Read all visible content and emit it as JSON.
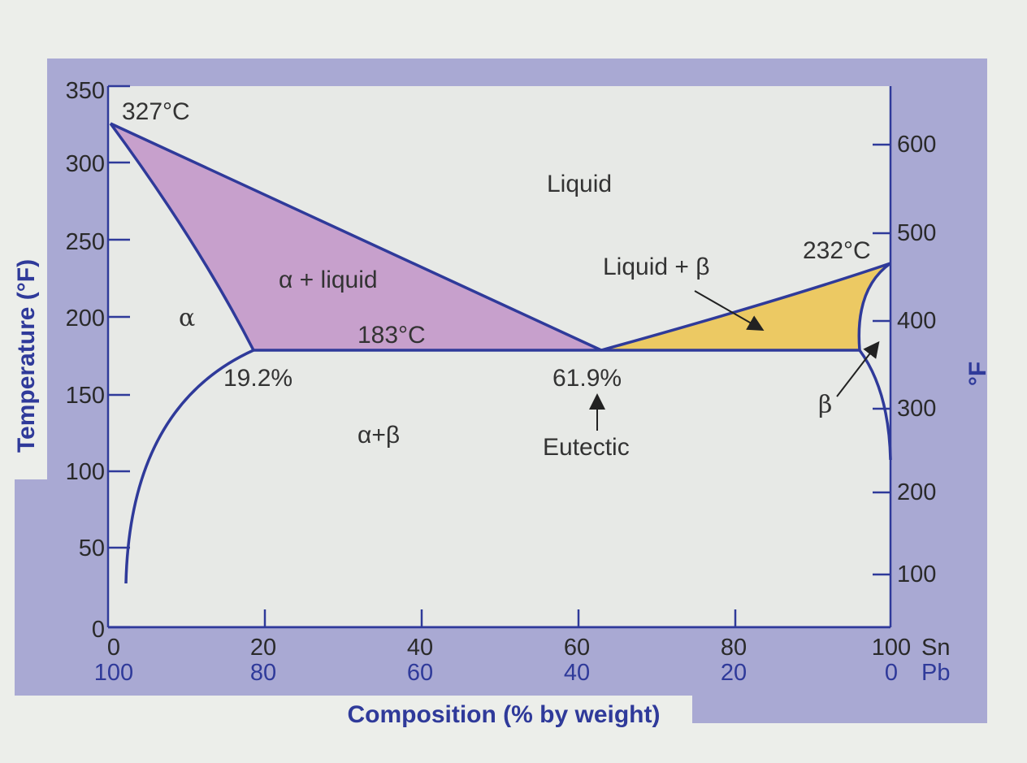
{
  "axes": {
    "left_title": "Temperature (°F)",
    "right_title": "°F",
    "bottom_title": "Composition (% by weight)",
    "left_ticks": [
      "350",
      "300",
      "250",
      "200",
      "150",
      "100",
      "50",
      "0"
    ],
    "right_ticks": [
      "600",
      "500",
      "400",
      "300",
      "200",
      "100"
    ],
    "sn_ticks": [
      "0",
      "20",
      "40",
      "60",
      "80",
      "100"
    ],
    "pb_ticks": [
      "100",
      "80",
      "60",
      "40",
      "20",
      "0"
    ],
    "sn_unit": "Sn",
    "pb_unit": "Pb"
  },
  "annotations": {
    "pb_melt": "327°C",
    "sn_melt": "232°C",
    "eutectic_temp": "183°C",
    "alpha_limit": "19.2%",
    "eutectic_comp": "61.9%",
    "eutectic_label": "Eutectic"
  },
  "regions": {
    "liquid": "Liquid",
    "alpha_liquid": "α + liquid",
    "alpha": "α",
    "alpha_beta": "α+β",
    "liquid_beta": "Liquid + β",
    "beta": "β"
  },
  "colors": {
    "frame": "#a9a9d3",
    "plot_bg": "#e7e9e6",
    "line": "#2f3a9a",
    "alpha_liquid_fill": "#c7a0cc",
    "liquid_beta_fill": "#ecc963"
  }
}
